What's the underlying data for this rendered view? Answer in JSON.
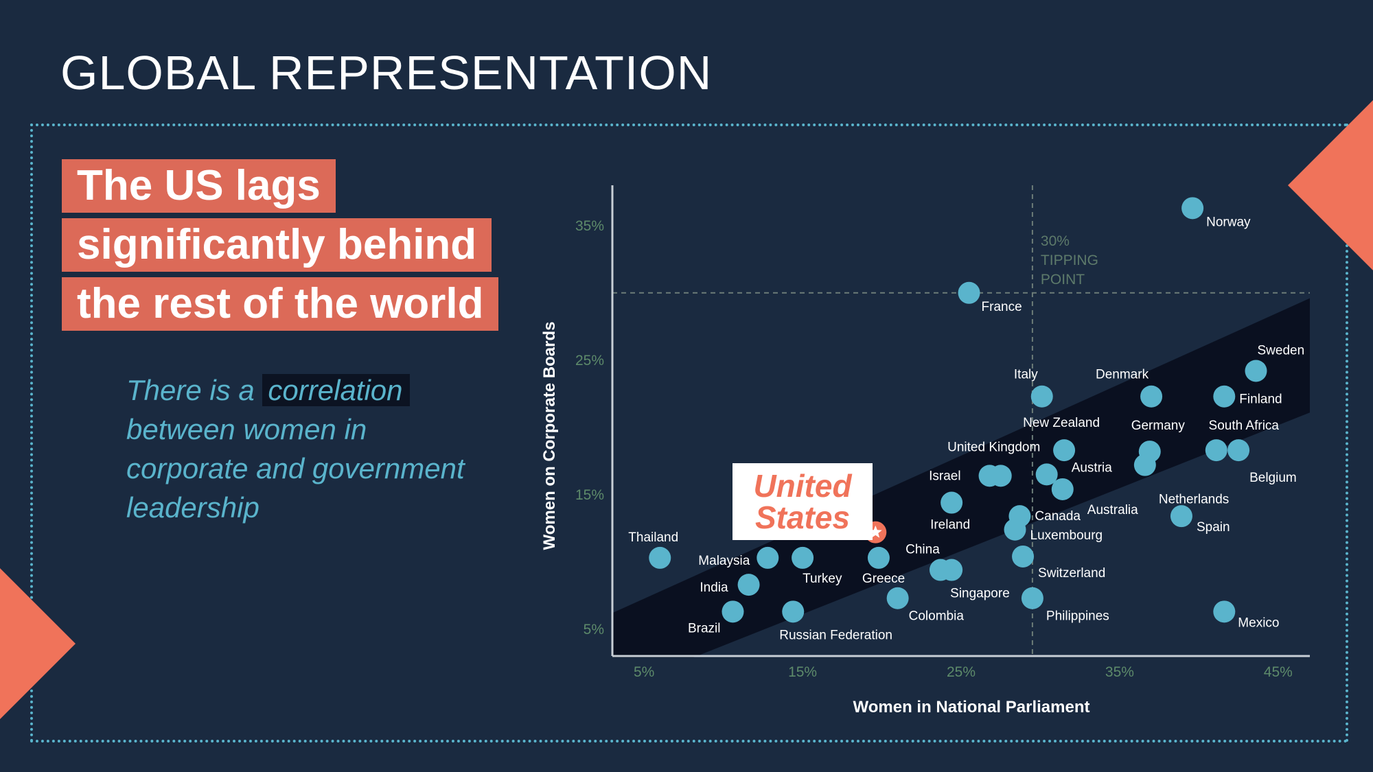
{
  "slide": {
    "title": "GLOBAL REPRESENTATION",
    "headline": [
      "The US lags",
      "significantly behind",
      "the rest of the world"
    ],
    "subtext": {
      "before": "There is a ",
      "highlight": "correlation",
      "after": " between women in corporate and government leadership"
    },
    "callout": [
      "United",
      "States"
    ]
  },
  "colors": {
    "background": "#1a2a40",
    "accent": "#f0735a",
    "point": "#5ab4cc",
    "band": "#0a1020"
  },
  "chart_data": {
    "type": "scatter",
    "xlabel": "Women in National Parliament",
    "ylabel": "Women on Corporate Boards",
    "xlim": [
      3,
      47
    ],
    "ylim": [
      3,
      38
    ],
    "xticks": [
      "5%",
      "15%",
      "25%",
      "35%",
      "45%"
    ],
    "xtick_values": [
      5,
      15,
      25,
      35,
      45
    ],
    "yticks": [
      "5%",
      "15%",
      "25%",
      "35%"
    ],
    "ytick_values": [
      5,
      15,
      25,
      35
    ],
    "reference_lines": {
      "x": 29.5,
      "y": 30,
      "label": [
        "30%",
        "TIPPING",
        "POINT"
      ]
    },
    "trend_band": {
      "x0": 3,
      "y0_low": 0.5,
      "y0_high": 6.2,
      "x1": 47,
      "y1_low": 21.1,
      "y1_high": 29.6
    },
    "points": [
      {
        "name": "Norway",
        "x": 39.6,
        "y": 36.3
      },
      {
        "name": "France",
        "x": 25.5,
        "y": 30.0
      },
      {
        "name": "Sweden",
        "x": 43.6,
        "y": 24.2
      },
      {
        "name": "Italy",
        "x": 30.1,
        "y": 22.3
      },
      {
        "name": "Denmark",
        "x": 37.0,
        "y": 22.3
      },
      {
        "name": "Finland",
        "x": 41.6,
        "y": 22.3
      },
      {
        "name": "New Zealand",
        "x": 31.5,
        "y": 18.3
      },
      {
        "name": "Germany",
        "x": 36.9,
        "y": 18.2
      },
      {
        "name": "South Africa",
        "x": 41.1,
        "y": 18.3
      },
      {
        "name": "Belgium",
        "x": 42.5,
        "y": 18.3
      },
      {
        "name": "Netherlands",
        "x": 36.6,
        "y": 17.2
      },
      {
        "name": "United Kingdom",
        "x": 27.5,
        "y": 16.4
      },
      {
        "name": "Israel",
        "x": 26.8,
        "y": 16.4
      },
      {
        "name": "Austria",
        "x": 30.4,
        "y": 16.5
      },
      {
        "name": "Australia",
        "x": 31.4,
        "y": 15.4
      },
      {
        "name": "Ireland",
        "x": 24.4,
        "y": 14.4
      },
      {
        "name": "Canada",
        "x": 28.7,
        "y": 13.4
      },
      {
        "name": "Luxembourg",
        "x": 28.4,
        "y": 12.4
      },
      {
        "name": "Spain",
        "x": 38.9,
        "y": 13.4
      },
      {
        "name": "Switzerland",
        "x": 28.9,
        "y": 10.4
      },
      {
        "name": "China",
        "x": 23.7,
        "y": 9.4
      },
      {
        "name": "Singapore",
        "x": 24.4,
        "y": 9.4
      },
      {
        "name": "Greece",
        "x": 19.8,
        "y": 10.3
      },
      {
        "name": "Thailand",
        "x": 6.0,
        "y": 10.3
      },
      {
        "name": "Malaysia",
        "x": 12.8,
        "y": 10.3
      },
      {
        "name": "Turkey",
        "x": 15.0,
        "y": 10.3
      },
      {
        "name": "India",
        "x": 11.6,
        "y": 8.3
      },
      {
        "name": "Brazil",
        "x": 10.6,
        "y": 6.3
      },
      {
        "name": "Russian Federation",
        "x": 14.4,
        "y": 6.3
      },
      {
        "name": "Colombia",
        "x": 21.0,
        "y": 7.3
      },
      {
        "name": "Philippines",
        "x": 29.5,
        "y": 7.3
      },
      {
        "name": "Mexico",
        "x": 41.6,
        "y": 6.3
      },
      {
        "name": "United States",
        "x": 19.6,
        "y": 12.2,
        "highlight": true
      }
    ]
  }
}
